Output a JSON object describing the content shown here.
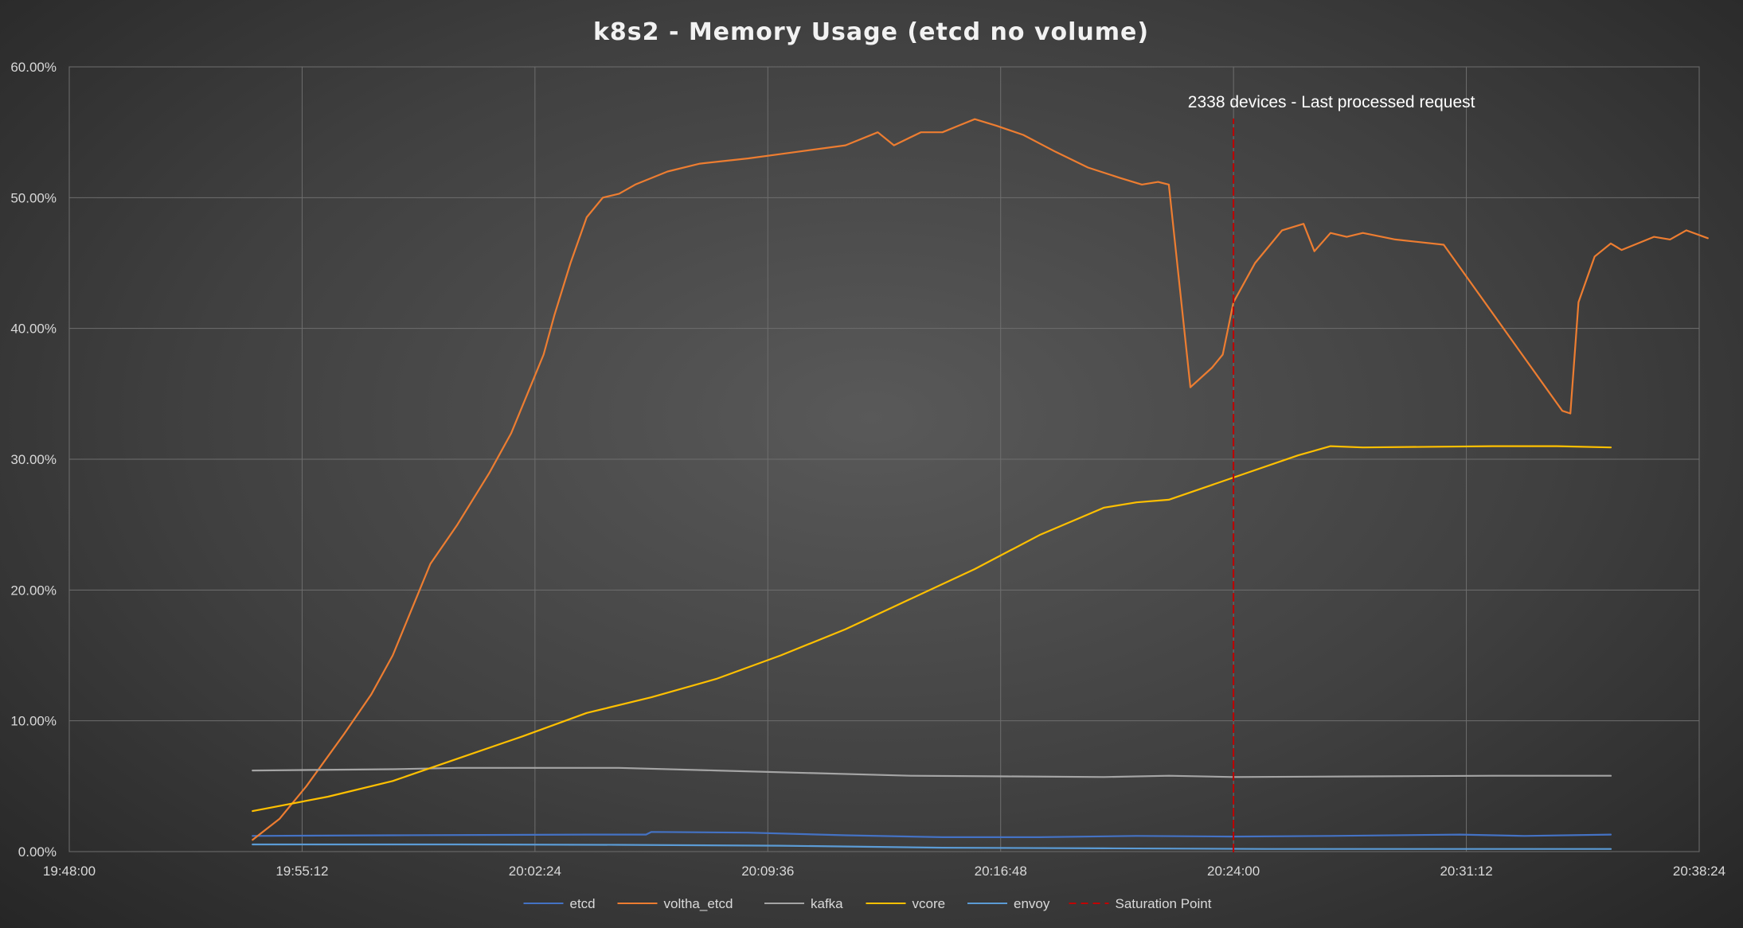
{
  "chart_data": {
    "type": "line",
    "title": "k8s2 - Memory Usage (etcd no volume)",
    "xlabel": "",
    "ylabel": "",
    "x_axis": {
      "type": "time",
      "range": [
        "19:48:00",
        "20:38:24"
      ],
      "ticks": [
        "19:48:00",
        "19:55:12",
        "20:02:24",
        "20:09:36",
        "20:16:48",
        "20:24:00",
        "20:31:12",
        "20:38:24"
      ]
    },
    "y_axis": {
      "range": [
        0,
        60
      ],
      "ticks": [
        "0.00%",
        "10.00%",
        "20.00%",
        "30.00%",
        "40.00%",
        "50.00%",
        "60.00%"
      ]
    },
    "grid": true,
    "legend_position": "bottom",
    "annotation": {
      "text": "2338 devices - Last processed request",
      "x": "20:24:00"
    },
    "series": [
      {
        "name": "etcd",
        "color": "#4472c4",
        "points": [
          [
            "19:53:40",
            1.2
          ],
          [
            "19:58:00",
            1.25
          ],
          [
            "20:04:00",
            1.3
          ],
          [
            "20:05:50",
            1.3
          ],
          [
            "20:06:00",
            1.5
          ],
          [
            "20:09:00",
            1.45
          ],
          [
            "20:12:00",
            1.25
          ],
          [
            "20:15:00",
            1.1
          ],
          [
            "20:18:00",
            1.1
          ],
          [
            "20:21:00",
            1.2
          ],
          [
            "20:24:00",
            1.15
          ],
          [
            "20:27:00",
            1.2
          ],
          [
            "20:31:00",
            1.3
          ],
          [
            "20:33:00",
            1.2
          ],
          [
            "20:35:40",
            1.3
          ]
        ]
      },
      {
        "name": "voltha_etcd",
        "color": "#ed7d31",
        "points": [
          [
            "19:53:40",
            0.9
          ],
          [
            "19:54:30",
            2.5
          ],
          [
            "19:55:20",
            5
          ],
          [
            "19:56:30",
            9
          ],
          [
            "19:57:20",
            12
          ],
          [
            "19:58:00",
            15
          ],
          [
            "19:58:40",
            19
          ],
          [
            "19:59:10",
            22
          ],
          [
            "20:00:00",
            25
          ],
          [
            "20:01:00",
            29
          ],
          [
            "20:01:40",
            32
          ],
          [
            "20:02:10",
            35
          ],
          [
            "20:02:40",
            38
          ],
          [
            "20:03:00",
            41
          ],
          [
            "20:03:30",
            45
          ],
          [
            "20:04:00",
            48.5
          ],
          [
            "20:04:30",
            50
          ],
          [
            "20:05:00",
            50.3
          ],
          [
            "20:05:30",
            51
          ],
          [
            "20:06:30",
            52
          ],
          [
            "20:07:30",
            52.6
          ],
          [
            "20:09:00",
            53
          ],
          [
            "20:10:30",
            53.5
          ],
          [
            "20:12:00",
            54
          ],
          [
            "20:13:00",
            55
          ],
          [
            "20:13:30",
            54
          ],
          [
            "20:14:20",
            55
          ],
          [
            "20:15:00",
            55
          ],
          [
            "20:15:30",
            55.5
          ],
          [
            "20:16:00",
            56
          ],
          [
            "20:16:40",
            55.5
          ],
          [
            "20:17:30",
            54.8
          ],
          [
            "20:18:30",
            53.5
          ],
          [
            "20:19:30",
            52.3
          ],
          [
            "20:20:30",
            51.5
          ],
          [
            "20:21:10",
            51
          ],
          [
            "20:21:40",
            51.2
          ],
          [
            "20:22:00",
            51
          ],
          [
            "20:22:40",
            35.5
          ],
          [
            "20:23:20",
            37
          ],
          [
            "20:23:40",
            38
          ],
          [
            "20:24:00",
            42
          ],
          [
            "20:24:40",
            45
          ],
          [
            "20:25:30",
            47.5
          ],
          [
            "20:26:10",
            48
          ],
          [
            "20:26:30",
            45.9
          ],
          [
            "20:27:00",
            47.3
          ],
          [
            "20:27:30",
            47
          ],
          [
            "20:28:00",
            47.3
          ],
          [
            "20:29:00",
            46.8
          ],
          [
            "20:30:30",
            46.4
          ],
          [
            "20:34:10",
            33.7
          ],
          [
            "20:34:25",
            33.5
          ],
          [
            "20:34:40",
            42
          ],
          [
            "20:35:10",
            45.5
          ],
          [
            "20:36:00",
            46
          ],
          [
            "20:37:00",
            47
          ],
          [
            "20:37:30",
            46.8
          ],
          [
            "20:38:00",
            47.5
          ],
          [
            "20:38:40",
            46.9
          ],
          [
            "20:35:40",
            46.5
          ]
        ]
      },
      {
        "name": "kafka",
        "color": "#a5a5a5",
        "points": [
          [
            "19:53:40",
            6.2
          ],
          [
            "19:58:00",
            6.3
          ],
          [
            "20:00:00",
            6.4
          ],
          [
            "20:05:00",
            6.4
          ],
          [
            "20:08:00",
            6.2
          ],
          [
            "20:11:00",
            6.0
          ],
          [
            "20:14:00",
            5.8
          ],
          [
            "20:17:00",
            5.75
          ],
          [
            "20:20:00",
            5.7
          ],
          [
            "20:22:00",
            5.8
          ],
          [
            "20:24:00",
            5.7
          ],
          [
            "20:28:00",
            5.75
          ],
          [
            "20:32:00",
            5.8
          ],
          [
            "20:35:40",
            5.8
          ]
        ]
      },
      {
        "name": "vcore",
        "color": "#ffc000",
        "points": [
          [
            "19:53:40",
            3.1
          ],
          [
            "19:56:00",
            4.2
          ],
          [
            "19:58:00",
            5.4
          ],
          [
            "20:00:00",
            7.1
          ],
          [
            "20:02:00",
            8.8
          ],
          [
            "20:04:00",
            10.6
          ],
          [
            "20:06:00",
            11.8
          ],
          [
            "20:08:00",
            13.2
          ],
          [
            "20:10:00",
            15.0
          ],
          [
            "20:12:00",
            17.0
          ],
          [
            "20:14:00",
            19.3
          ],
          [
            "20:16:00",
            21.6
          ],
          [
            "20:18:00",
            24.2
          ],
          [
            "20:20:00",
            26.3
          ],
          [
            "20:21:00",
            26.7
          ],
          [
            "20:22:00",
            26.9
          ],
          [
            "20:24:00",
            28.6
          ],
          [
            "20:26:00",
            30.3
          ],
          [
            "20:27:00",
            31.0
          ],
          [
            "20:28:00",
            30.9
          ],
          [
            "20:32:00",
            31.0
          ],
          [
            "20:34:00",
            31.0
          ],
          [
            "20:35:40",
            30.9
          ]
        ]
      },
      {
        "name": "envoy",
        "color": "#5b9bd5",
        "points": [
          [
            "19:53:40",
            0.55
          ],
          [
            "20:00:00",
            0.55
          ],
          [
            "20:05:00",
            0.52
          ],
          [
            "20:10:00",
            0.45
          ],
          [
            "20:15:00",
            0.3
          ],
          [
            "20:20:00",
            0.25
          ],
          [
            "20:25:00",
            0.2
          ],
          [
            "20:30:00",
            0.2
          ],
          [
            "20:35:40",
            0.2
          ]
        ]
      },
      {
        "name": "Saturation Point",
        "color": "#c00000",
        "dashed": true,
        "points": [
          [
            "20:24:00",
            0
          ],
          [
            "20:24:00",
            56
          ]
        ]
      }
    ]
  }
}
